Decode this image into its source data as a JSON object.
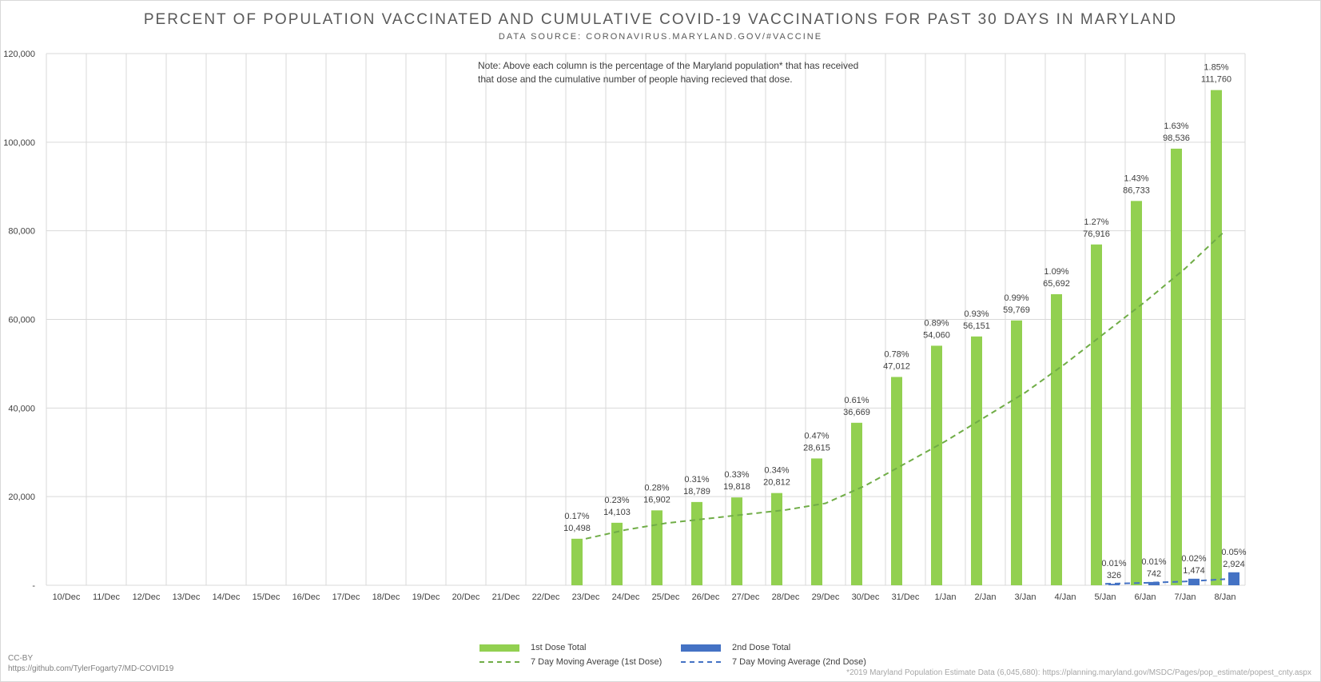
{
  "chart_data": {
    "type": "bar",
    "title": "PERCENT OF POPULATION VACCINATED AND CUMULATIVE COVID-19 VACCINATIONS FOR PAST 30 DAYS IN MARYLAND",
    "subtitle": "DATA SOURCE: CORONAVIRUS.MARYLAND.GOV/#VACCINE",
    "note": "Note: Above each column is the percentage of the Maryland population* that has received that dose and the cumulative number of people having recieved that dose.",
    "categories": [
      "10/Dec",
      "11/Dec",
      "12/Dec",
      "13/Dec",
      "14/Dec",
      "15/Dec",
      "16/Dec",
      "17/Dec",
      "18/Dec",
      "19/Dec",
      "20/Dec",
      "21/Dec",
      "22/Dec",
      "23/Dec",
      "24/Dec",
      "25/Dec",
      "26/Dec",
      "27/Dec",
      "28/Dec",
      "29/Dec",
      "30/Dec",
      "31/Dec",
      "1/Jan",
      "2/Jan",
      "3/Jan",
      "4/Jan",
      "5/Jan",
      "6/Jan",
      "7/Jan",
      "8/Jan"
    ],
    "y_ticks": [
      "-",
      "20,000",
      "40,000",
      "60,000",
      "80,000",
      "100,000",
      "120,000"
    ],
    "ylim": [
      0,
      120000
    ],
    "grid": true,
    "legend_position": "bottom",
    "colors": {
      "dose1": "#92d050",
      "dose2": "#4472c4",
      "grid": "#d9d9d9"
    },
    "series": [
      {
        "name": "1st Dose Total",
        "kind": "bar",
        "values": [
          null,
          null,
          null,
          null,
          null,
          null,
          null,
          null,
          null,
          null,
          null,
          null,
          null,
          10498,
          14103,
          16902,
          18789,
          19818,
          20812,
          28615,
          36669,
          47012,
          54060,
          56151,
          59769,
          65692,
          76916,
          86733,
          98536,
          111760
        ],
        "labels": [
          "",
          "",
          "",
          "",
          "",
          "",
          "",
          "",
          "",
          "",
          "",
          "",
          "",
          "10,498",
          "14,103",
          "16,902",
          "18,789",
          "19,818",
          "20,812",
          "28,615",
          "36,669",
          "47,012",
          "54,060",
          "56,151",
          "59,769",
          "65,692",
          "76,916",
          "86,733",
          "98,536",
          "111,760"
        ],
        "pct_labels": [
          "",
          "",
          "",
          "",
          "",
          "",
          "",
          "",
          "",
          "",
          "",
          "",
          "",
          "0.17%",
          "0.23%",
          "0.28%",
          "0.31%",
          "0.33%",
          "0.34%",
          "0.47%",
          "0.61%",
          "0.78%",
          "0.89%",
          "0.93%",
          "0.99%",
          "1.09%",
          "1.27%",
          "1.43%",
          "1.63%",
          "1.85%"
        ]
      },
      {
        "name": "2nd Dose Total",
        "kind": "bar",
        "values": [
          null,
          null,
          null,
          null,
          null,
          null,
          null,
          null,
          null,
          null,
          null,
          null,
          null,
          null,
          null,
          null,
          null,
          null,
          null,
          null,
          null,
          null,
          null,
          null,
          null,
          null,
          326,
          742,
          1474,
          2924
        ],
        "labels": [
          "",
          "",
          "",
          "",
          "",
          "",
          "",
          "",
          "",
          "",
          "",
          "",
          "",
          "",
          "",
          "",
          "",
          "",
          "",
          "",
          "",
          "",
          "",
          "",
          "",
          "",
          "326",
          "742",
          "1,474",
          "2,924"
        ],
        "pct_labels": [
          "",
          "",
          "",
          "",
          "",
          "",
          "",
          "",
          "",
          "",
          "",
          "",
          "",
          "",
          "",
          "",
          "",
          "",
          "",
          "",
          "",
          "",
          "",
          "",
          "",
          "",
          "0.01%",
          "0.01%",
          "0.02%",
          "0.05%"
        ]
      },
      {
        "name": "7 Day Moving Average (1st Dose)",
        "kind": "line",
        "values": [
          null,
          null,
          null,
          null,
          null,
          null,
          null,
          null,
          null,
          null,
          null,
          null,
          null,
          10500,
          12500,
          14000,
          15000,
          16000,
          17000,
          18500,
          22500,
          27500,
          32500,
          38000,
          43500,
          50000,
          57000,
          64000,
          71500,
          80000
        ]
      },
      {
        "name": "7 Day Moving Average (2nd Dose)",
        "kind": "line",
        "values": [
          null,
          null,
          null,
          null,
          null,
          null,
          null,
          null,
          null,
          null,
          null,
          null,
          null,
          null,
          null,
          null,
          null,
          null,
          null,
          null,
          null,
          null,
          null,
          null,
          null,
          null,
          326,
          534,
          847,
          1367
        ]
      }
    ]
  },
  "footer": {
    "license": "CC-BY",
    "repo_url": "https://github.com/TylerFogarty7/MD-COVID19",
    "population_note": "*2019 Maryland Population Estimate Data (6,045,680): https://planning.maryland.gov/MSDC/Pages/pop_estimate/popest_cnty.aspx"
  }
}
